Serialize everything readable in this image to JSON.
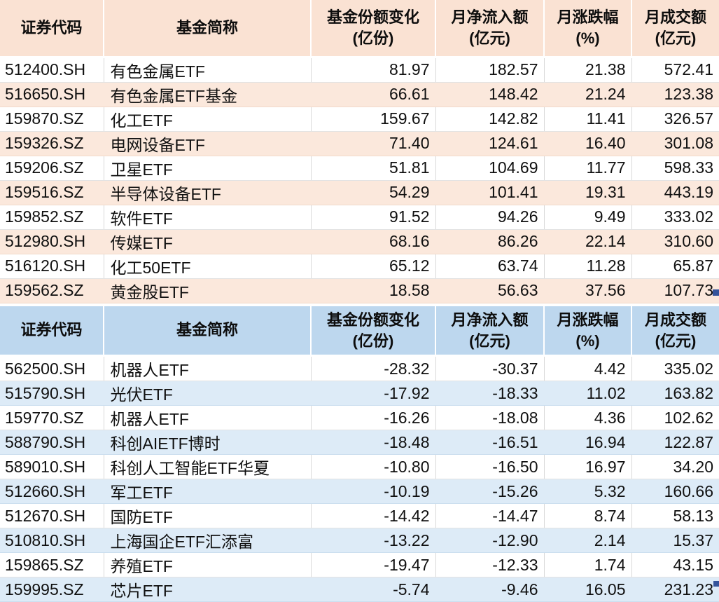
{
  "theme": {
    "inflow_header_bg": "#FAE2D3",
    "inflow_band_bg": "#FBE8DC",
    "outflow_header_bg": "#BDD7EE",
    "outflow_band_bg": "#DDEBF7",
    "selection_handle_color": "#35549B",
    "gridline_color": "#D9D9D9",
    "text_color": "#101010"
  },
  "columns_meta": [
    {
      "key": "security_code",
      "label": "证券代码",
      "sub": ""
    },
    {
      "key": "fund_name",
      "label": "基金简称",
      "sub": ""
    },
    {
      "key": "share_change",
      "label": "基金份额变化",
      "sub": "(亿份)"
    },
    {
      "key": "net_inflow",
      "label": "月净流入额",
      "sub": "(亿元)"
    },
    {
      "key": "monthly_change",
      "label": "月涨跌幅",
      "sub": "(%)"
    },
    {
      "key": "turnover",
      "label": "月成交额",
      "sub": "(亿元)"
    }
  ],
  "tables": [
    {
      "name": "net-inflow-top10",
      "columns": [
        {
          "label": "证券代码",
          "sub": ""
        },
        {
          "label": "基金简称",
          "sub": ""
        },
        {
          "label": "基金份额变化",
          "sub": "(亿份)"
        },
        {
          "label": "月净流入额",
          "sub": "(亿元)"
        },
        {
          "label": "月涨跌幅",
          "sub": "(%)"
        },
        {
          "label": "月成交额",
          "sub": "(亿元)"
        }
      ],
      "rows": [
        [
          "512400.SH",
          "有色金属ETF",
          "81.97",
          "182.57",
          "21.38",
          "572.41"
        ],
        [
          "516650.SH",
          "有色金属ETF基金",
          "66.61",
          "148.42",
          "21.24",
          "123.38"
        ],
        [
          "159870.SZ",
          "化工ETF",
          "159.67",
          "142.82",
          "11.41",
          "326.57"
        ],
        [
          "159326.SZ",
          "电网设备ETF",
          "71.40",
          "124.61",
          "16.40",
          "301.08"
        ],
        [
          "159206.SZ",
          "卫星ETF",
          "51.81",
          "104.69",
          "11.77",
          "598.33"
        ],
        [
          "159516.SZ",
          "半导体设备ETF",
          "54.29",
          "101.41",
          "19.31",
          "443.19"
        ],
        [
          "159852.SZ",
          "软件ETF",
          "91.52",
          "94.26",
          "9.49",
          "333.02"
        ],
        [
          "512980.SH",
          "传媒ETF",
          "68.16",
          "86.26",
          "22.14",
          "310.60"
        ],
        [
          "516120.SH",
          "化工50ETF",
          "65.12",
          "63.74",
          "11.28",
          "65.87"
        ],
        [
          "159562.SZ",
          "黄金股ETF",
          "18.58",
          "56.63",
          "37.56",
          "107.73"
        ]
      ]
    },
    {
      "name": "net-outflow-top10",
      "columns": [
        {
          "label": "证券代码",
          "sub": ""
        },
        {
          "label": "基金简称",
          "sub": ""
        },
        {
          "label": "基金份额变化",
          "sub": "(亿份)"
        },
        {
          "label": "月净流入额",
          "sub": "(亿元)"
        },
        {
          "label": "月涨跌幅",
          "sub": "(%)"
        },
        {
          "label": "月成交额",
          "sub": "(亿元)"
        }
      ],
      "rows": [
        [
          "562500.SH",
          "机器人ETF",
          "-28.32",
          "-30.37",
          "4.42",
          "335.02"
        ],
        [
          "515790.SH",
          "光伏ETF",
          "-17.92",
          "-18.33",
          "11.02",
          "163.82"
        ],
        [
          "159770.SZ",
          "机器人ETF",
          "-16.26",
          "-18.08",
          "4.36",
          "102.62"
        ],
        [
          "588790.SH",
          "科创AIETF博时",
          "-18.48",
          "-16.51",
          "16.94",
          "122.87"
        ],
        [
          "589010.SH",
          "科创人工智能ETF华夏",
          "-10.80",
          "-16.50",
          "16.97",
          "34.20"
        ],
        [
          "512660.SH",
          "军工ETF",
          "-10.19",
          "-15.26",
          "5.32",
          "160.66"
        ],
        [
          "512670.SH",
          "国防ETF",
          "-14.42",
          "-14.47",
          "8.74",
          "58.13"
        ],
        [
          "510810.SH",
          "上海国企ETF汇添富",
          "-13.22",
          "-12.90",
          "2.14",
          "15.37"
        ],
        [
          "159865.SZ",
          "养殖ETF",
          "-19.47",
          "-12.33",
          "1.74",
          "43.15"
        ],
        [
          "159995.SZ",
          "芯片ETF",
          "-5.74",
          "-9.46",
          "16.05",
          "231.23"
        ]
      ]
    }
  ]
}
